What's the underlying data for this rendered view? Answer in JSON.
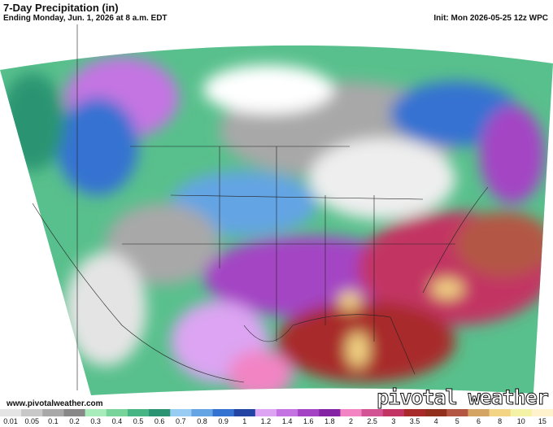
{
  "header": {
    "title": "7-Day Precipitation (in)",
    "subtitle": "Ending Monday, Jun. 1, 2026 at 8 a.m. EDT",
    "init": "Init: Mon 2026-05-25 12z WPC"
  },
  "footer": {
    "website": "www.pivotalweather.com",
    "logo": "pivotal weather"
  },
  "colorbar": {
    "labels": [
      "0.01",
      "0.05",
      "0.1",
      "0.2",
      "0.3",
      "0.4",
      "0.5",
      "0.6",
      "0.7",
      "0.8",
      "0.9",
      "1",
      "1.2",
      "1.4",
      "1.6",
      "1.8",
      "2",
      "2.5",
      "3",
      "3.5",
      "4",
      "5",
      "6",
      "8",
      "10",
      "15"
    ],
    "colors": [
      "#e4e4e4",
      "#c8c8c8",
      "#a8a8a8",
      "#888888",
      "#a8ecbc",
      "#78d49a",
      "#48b684",
      "#2a9472",
      "#98ccf2",
      "#64a4e4",
      "#3472d2",
      "#2444a4",
      "#dca4f2",
      "#c474e2",
      "#a444c4",
      "#8424a4",
      "#f284c4",
      "#d25494",
      "#c23464",
      "#a82a2a",
      "#92301e",
      "#b45644",
      "#d4a464",
      "#f2d484",
      "#f4f2a4",
      "#fff2cc"
    ]
  }
}
